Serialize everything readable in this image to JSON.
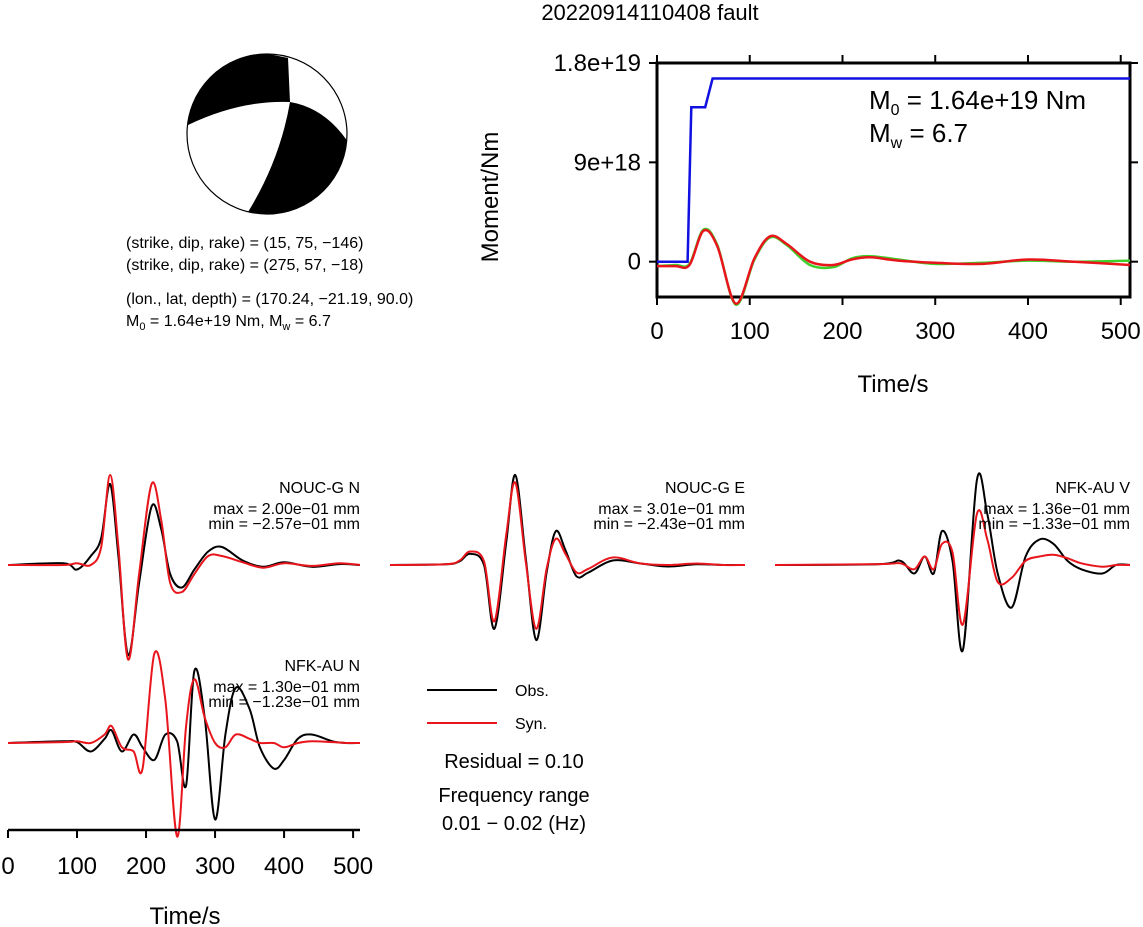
{
  "page": {
    "title": "20220914110408 fault"
  },
  "mechanism": {
    "line1": "(strike, dip, rake) = (15, 75, −146)",
    "line2": "(strike, dip, rake) = (275, 57, −18)",
    "line3": "(lon., lat, depth) = (170.24, −21.19, 90.0)",
    "line4_m": "M",
    "line4_sub": "0",
    "line4_mid": " = 1.64e+19 Nm, M",
    "line4_sub2": "w",
    "line4_end": " = 6.7"
  },
  "moment_plot": {
    "ylabel": "Moment/Nm",
    "xlabel": "Time/s",
    "m0_prefix": "M",
    "m0_sub": "0",
    "m0_value": " = 1.64e+19 Nm",
    "mw_prefix": "M",
    "mw_sub": "w",
    "mw_value": " = 6.7"
  },
  "traces": [
    {
      "station": "NOUC-G N",
      "max": "max = 2.00e−01 mm",
      "min": "min = −2.57e−01 mm"
    },
    {
      "station": "NOUC-G E",
      "max": "max = 3.01e−01 mm",
      "min": "min = −2.43e−01 mm"
    },
    {
      "station": "NFK-AU V",
      "max": "max = 1.36e−01 mm",
      "min": "min = −1.33e−01 mm"
    },
    {
      "station": "NFK-AU N",
      "max": "max = 1.30e−01 mm",
      "min": "min = −1.23e−01 mm"
    }
  ],
  "legend": {
    "obs": "Obs.",
    "syn": "Syn.",
    "residual": "Residual = 0.10",
    "freq_label": "Frequency range",
    "freq_value": "0.01 − 0.02 (Hz)"
  },
  "bottom_axis": {
    "xlabel": "Time/s"
  },
  "colors": {
    "obs": "#000000",
    "syn": "#e8161c",
    "moment": "#1010e0",
    "syn_moment": "#3ecf2a"
  },
  "chart_data": [
    {
      "type": "line",
      "title": "",
      "xlabel": "Time/s",
      "ylabel": "Moment/Nm",
      "xlim": [
        0,
        510
      ],
      "ylim": [
        -3.2e+18,
        1.8e+19
      ],
      "xticks": [
        "0",
        "100",
        "200",
        "300",
        "400",
        "500"
      ],
      "yticks": [
        "0",
        "9e+18",
        "1.8e+19"
      ],
      "series": [
        {
          "color": "#1010e0",
          "x": [
            0,
            33,
            37,
            52,
            60,
            510
          ],
          "y": [
            0,
            0,
            1.4e+19,
            1.4e+19,
            1.66e+19,
            1.66e+19
          ]
        },
        {
          "color": "#3ecf2a",
          "x": [
            0,
            20,
            35,
            50,
            65,
            85,
            105,
            122,
            140,
            165,
            190,
            210,
            230,
            260,
            300,
            350,
            400,
            450,
            510
          ],
          "y": [
            -4e+17,
            -3e+17,
            -2e+17,
            2.9e+18,
            1.5e+18,
            -3.9e+18,
            2e+17,
            2.2e+18,
            1.5e+18,
            -3e+17,
            -5e+17,
            3e+17,
            5e+17,
            2e+17,
            -2e+17,
            -1e+17,
            1e+17,
            0,
            1e+17
          ]
        },
        {
          "color": "#e8161c",
          "x": [
            0,
            20,
            35,
            50,
            65,
            85,
            105,
            122,
            140,
            165,
            190,
            210,
            230,
            260,
            300,
            350,
            400,
            450,
            510
          ],
          "y": [
            -4e+17,
            -4e+17,
            -3e+17,
            2.8e+18,
            1.4e+18,
            -3.8e+18,
            3e+17,
            2.3e+18,
            1.6e+18,
            0,
            -3e+17,
            2e+17,
            4e+17,
            1e+17,
            -1e+17,
            -2e+17,
            2e+17,
            0,
            -3e+17
          ]
        }
      ]
    },
    {
      "type": "line",
      "title": "NOUC-G N",
      "xlim": [
        0,
        510
      ],
      "ylim": [
        -1,
        1
      ],
      "series": [
        {
          "name": "Obs.",
          "color": "#000000",
          "x": [
            0,
            80,
            100,
            120,
            135,
            148,
            160,
            174,
            190,
            208,
            222,
            235,
            252,
            270,
            290,
            310,
            340,
            370,
            400,
            440,
            480,
            510
          ],
          "y": [
            0,
            0.02,
            -0.05,
            0.1,
            0.3,
            0.9,
            0.1,
            -1.0,
            -0.2,
            0.65,
            0.4,
            -0.1,
            -0.25,
            -0.05,
            0.15,
            0.2,
            0.05,
            -0.02,
            0.03,
            -0.02,
            0.01,
            0
          ]
        },
        {
          "name": "Syn.",
          "color": "#e8161c",
          "x": [
            0,
            80,
            100,
            120,
            135,
            148,
            160,
            174,
            190,
            208,
            222,
            235,
            252,
            270,
            290,
            310,
            340,
            370,
            400,
            440,
            480,
            510
          ],
          "y": [
            0,
            0,
            0.02,
            0,
            0.2,
            1.0,
            0.2,
            -1.05,
            -0.1,
            0.9,
            0.5,
            -0.2,
            -0.3,
            -0.1,
            0.1,
            0.1,
            0.03,
            -0.03,
            0.02,
            -0.01,
            0.02,
            0
          ]
        }
      ]
    },
    {
      "type": "line",
      "title": "NOUC-G E",
      "xlim": [
        0,
        510
      ],
      "ylim": [
        -1,
        1
      ],
      "series": [
        {
          "name": "Obs.",
          "color": "#000000",
          "x": [
            0,
            80,
            100,
            115,
            135,
            150,
            167,
            180,
            195,
            210,
            225,
            238,
            252,
            268,
            285,
            320,
            360,
            400,
            440,
            480,
            510
          ],
          "y": [
            0,
            0.01,
            0.05,
            0.15,
            0,
            -0.85,
            0.3,
            1.2,
            0.1,
            -1.0,
            -0.1,
            0.45,
            0.2,
            -0.15,
            -0.1,
            0.06,
            0.02,
            -0.02,
            0.01,
            0,
            0
          ]
        },
        {
          "name": "Syn.",
          "color": "#e8161c",
          "x": [
            0,
            80,
            100,
            115,
            135,
            150,
            167,
            180,
            195,
            210,
            225,
            238,
            252,
            268,
            285,
            320,
            360,
            400,
            440,
            480,
            510
          ],
          "y": [
            0,
            0.01,
            0.06,
            0.18,
            0.05,
            -0.75,
            0.4,
            1.1,
            0.05,
            -0.85,
            -0.05,
            0.35,
            0.15,
            -0.1,
            -0.05,
            0.1,
            0.02,
            0,
            0.02,
            0,
            0
          ]
        }
      ]
    },
    {
      "type": "line",
      "title": "NFK-AU V",
      "xlim": [
        0,
        510
      ],
      "ylim": [
        -1,
        1
      ],
      "series": [
        {
          "name": "Obs.",
          "color": "#000000",
          "x": [
            0,
            150,
            180,
            200,
            215,
            228,
            240,
            255,
            270,
            290,
            305,
            320,
            340,
            360,
            380,
            400,
            420,
            440,
            470,
            490,
            510
          ],
          "y": [
            0,
            0.01,
            0.05,
            -0.1,
            0.1,
            -0.1,
            0.4,
            0.05,
            -1.0,
            1.0,
            0.6,
            -0.1,
            -0.5,
            0.1,
            0.3,
            0.25,
            0.05,
            -0.05,
            -0.1,
            0,
            0
          ]
        },
        {
          "name": "Syn.",
          "color": "#e8161c",
          "x": [
            0,
            150,
            180,
            200,
            215,
            228,
            240,
            255,
            270,
            290,
            305,
            320,
            340,
            360,
            380,
            400,
            420,
            440,
            470,
            490,
            510
          ],
          "y": [
            0,
            0.01,
            0.02,
            -0.05,
            0.1,
            -0.05,
            0.25,
            0.15,
            -0.7,
            0.6,
            0.3,
            -0.2,
            -0.15,
            0.05,
            0.1,
            0.12,
            0.08,
            0.02,
            -0.02,
            0,
            0
          ]
        }
      ]
    },
    {
      "type": "line",
      "title": "NFK-AU N",
      "xlim": [
        0,
        510
      ],
      "ylim": [
        -1,
        1
      ],
      "xticks": [
        "0",
        "100",
        "200",
        "300",
        "400",
        "500"
      ],
      "xlabel": "Time/s",
      "series": [
        {
          "name": "Obs.",
          "color": "#000000",
          "x": [
            0,
            80,
            100,
            120,
            140,
            150,
            165,
            182,
            195,
            212,
            228,
            245,
            258,
            270,
            285,
            300,
            315,
            330,
            350,
            365,
            385,
            400,
            420,
            440,
            470,
            490,
            510
          ],
          "y": [
            0,
            0.02,
            0.01,
            -0.1,
            0.05,
            0.15,
            -0.1,
            0.1,
            -0.05,
            -0.2,
            0.1,
            0.02,
            -0.5,
            0.85,
            0.3,
            -0.9,
            0.1,
            0.65,
            0.4,
            -0.05,
            -0.3,
            -0.2,
            0.05,
            0.1,
            0.02,
            0,
            0
          ]
        },
        {
          "name": "Syn.",
          "color": "#e8161c",
          "x": [
            0,
            80,
            100,
            120,
            140,
            150,
            165,
            182,
            195,
            212,
            228,
            245,
            258,
            270,
            285,
            300,
            315,
            330,
            350,
            365,
            385,
            400,
            420,
            440,
            470,
            490,
            510
          ],
          "y": [
            0,
            0.01,
            0.02,
            0,
            0.1,
            0.2,
            -0.05,
            -0.1,
            -0.3,
            1.05,
            0.5,
            -1.1,
            0.2,
            0.75,
            0.3,
            0,
            -0.05,
            0.1,
            0.05,
            0,
            0,
            -0.05,
            0,
            0.02,
            0.01,
            0,
            0
          ]
        }
      ]
    }
  ]
}
